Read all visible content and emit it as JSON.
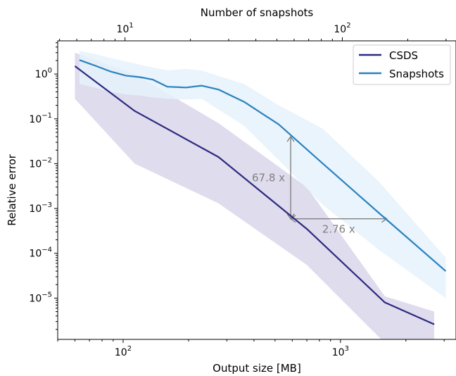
{
  "chart_data": {
    "type": "line",
    "top_axis_label": "Number of snapshots",
    "top_axis_scale": "log",
    "top_tick_labels": [
      "10^1",
      "10^2"
    ],
    "xlabel": "Output size [MB]",
    "x_scale": "log",
    "x_tick_labels": [
      "10^2",
      "10^3"
    ],
    "ylabel": "Relative error",
    "y_scale": "log",
    "y_tick_labels": [
      "10^0",
      "10^-1",
      "10^-2",
      "10^-3",
      "10^-4",
      "10^-5"
    ],
    "xlim": [
      50,
      3400
    ],
    "ylim": [
      1.2e-06,
      5.5
    ],
    "grid": false,
    "legend_position": "top-right",
    "series": [
      {
        "name": "CSDS",
        "color": "#2c2a7f",
        "band_color": "#d9d6ea",
        "x": [
          60,
          113,
          275,
          700,
          1600,
          2700
        ],
        "y": [
          1.5,
          0.15,
          0.014,
          0.00035,
          8e-06,
          2.6e-06
        ],
        "band_upper": [
          3.0,
          1.0,
          0.08,
          0.003,
          1.1e-05,
          5e-06
        ],
        "band_lower": [
          0.28,
          0.01,
          0.0013,
          5.5e-05,
          1e-06,
          1e-06
        ]
      },
      {
        "name": "Snapshots",
        "color": "#2a82bf",
        "band_color": "#e6f2fb",
        "x": [
          63,
          74,
          87,
          103,
          120,
          137,
          160,
          195,
          230,
          275,
          360,
          520,
          830,
          1500,
          3050
        ],
        "y": [
          2.05,
          1.55,
          1.15,
          0.92,
          0.85,
          0.75,
          0.52,
          0.5,
          0.55,
          0.45,
          0.24,
          0.075,
          0.01,
          0.0008,
          4e-05
        ],
        "band_upper": [
          3.3,
          2.8,
          2.3,
          1.9,
          1.6,
          1.4,
          1.2,
          1.3,
          1.2,
          0.9,
          0.6,
          0.2,
          0.06,
          0.004,
          8e-05
        ],
        "band_lower": [
          0.6,
          0.5,
          0.4,
          0.35,
          0.33,
          0.3,
          0.28,
          0.27,
          0.28,
          0.16,
          0.07,
          0.012,
          0.0012,
          0.00012,
          1e-05
        ]
      }
    ],
    "annotations": [
      {
        "text": "67.8 x",
        "orientation": "vertical",
        "x": 590,
        "y_from": 0.00059,
        "y_to": 0.04
      },
      {
        "text": "2.76 x",
        "orientation": "horizontal",
        "y": 0.00059,
        "x_from": 590,
        "x_to": 1630
      }
    ]
  }
}
